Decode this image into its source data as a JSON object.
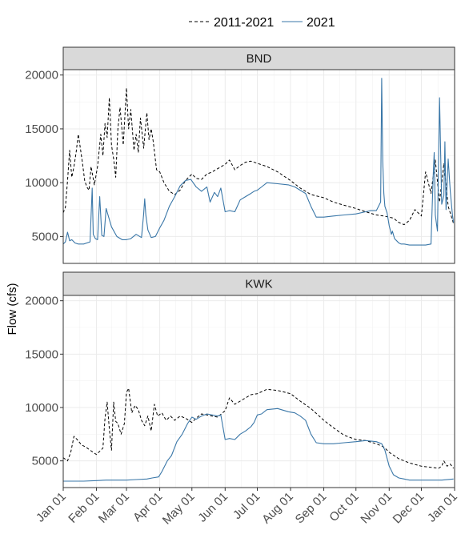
{
  "chart_data": {
    "type": "line",
    "ylabel": "Flow (cfs)",
    "xlabel": "",
    "xlim": [
      "2021-01-01",
      "2022-01-01"
    ],
    "ylim": [
      2500,
      20500
    ],
    "y_ticks": [
      5000,
      10000,
      15000,
      20000
    ],
    "x_tick_labels": [
      "Jan 01",
      "Feb 01",
      "Mar 01",
      "Apr 01",
      "May 01",
      "Jun 01",
      "Jul 01",
      "Aug 01",
      "Sep 01",
      "Oct 01",
      "Nov 01",
      "Dec 01",
      "Jan 01"
    ],
    "x_ticks": [
      "2021-01-01",
      "2021-02-01",
      "2021-03-01",
      "2021-04-01",
      "2021-05-01",
      "2021-06-01",
      "2021-07-01",
      "2021-08-01",
      "2021-09-01",
      "2021-10-01",
      "2021-11-01",
      "2021-12-01",
      "2022-01-01"
    ],
    "grid": true,
    "legend": {
      "position": "top",
      "entries": [
        {
          "label": "2011-2021",
          "style": "dashed",
          "color": "#000000"
        },
        {
          "label": "2021",
          "style": "solid",
          "color": "#3a77a8"
        }
      ]
    },
    "panels": [
      {
        "strip": "BND",
        "series": [
          {
            "name": "2011-2021",
            "color": "#000000",
            "style": "dashed",
            "x": [
              "2021-01-01",
              "2021-01-03",
              "2021-01-05",
              "2021-01-07",
              "2021-01-09",
              "2021-01-11",
              "2021-01-13",
              "2021-01-15",
              "2021-01-17",
              "2021-01-19",
              "2021-01-21",
              "2021-01-23",
              "2021-01-25",
              "2021-01-27",
              "2021-01-30",
              "2021-02-02",
              "2021-02-05",
              "2021-02-07",
              "2021-02-09",
              "2021-02-11",
              "2021-02-13",
              "2021-02-15",
              "2021-02-17",
              "2021-02-19",
              "2021-02-21",
              "2021-02-23",
              "2021-02-26",
              "2021-03-01",
              "2021-03-03",
              "2021-03-05",
              "2021-03-08",
              "2021-03-10",
              "2021-03-12",
              "2021-03-14",
              "2021-03-17",
              "2021-03-20",
              "2021-03-22",
              "2021-03-24",
              "2021-03-26",
              "2021-03-29",
              "2021-04-01",
              "2021-04-05",
              "2021-04-10",
              "2021-04-15",
              "2021-04-20",
              "2021-04-25",
              "2021-05-01",
              "2021-05-05",
              "2021-05-10",
              "2021-05-15",
              "2021-05-20",
              "2021-05-25",
              "2021-06-01",
              "2021-06-05",
              "2021-06-10",
              "2021-06-15",
              "2021-06-20",
              "2021-06-25",
              "2021-07-01",
              "2021-07-10",
              "2021-07-20",
              "2021-08-01",
              "2021-08-10",
              "2021-08-20",
              "2021-09-01",
              "2021-09-10",
              "2021-09-20",
              "2021-10-01",
              "2021-10-10",
              "2021-10-20",
              "2021-10-27",
              "2021-11-01",
              "2021-11-05",
              "2021-11-10",
              "2021-11-15",
              "2021-11-20",
              "2021-11-25",
              "2021-12-01",
              "2021-12-05",
              "2021-12-10",
              "2021-12-14",
              "2021-12-18",
              "2021-12-22",
              "2021-12-26",
              "2021-12-31"
            ],
            "y": [
              7200,
              7700,
              10200,
              13000,
              10500,
              11500,
              12800,
              14500,
              13200,
              11800,
              10200,
              9600,
              9300,
              11500,
              9800,
              11500,
              14500,
              12500,
              15500,
              14200,
              17900,
              13500,
              12200,
              10500,
              15000,
              17000,
              13500,
              18800,
              15000,
              16800,
              13000,
              14500,
              12800,
              16000,
              13200,
              16500,
              14000,
              15000,
              13800,
              11200,
              11000,
              10000,
              9200,
              8900,
              9300,
              10200,
              10800,
              10400,
              10300,
              10800,
              11000,
              11300,
              11700,
              12100,
              11200,
              11600,
              11900,
              12000,
              11800,
              11500,
              11000,
              10200,
              9500,
              8900,
              8600,
              8200,
              7900,
              7600,
              7300,
              7000,
              6900,
              6800,
              6700,
              6300,
              6100,
              6500,
              7500,
              6900,
              11000,
              9000,
              12100,
              8200,
              11800,
              7800,
              6200
            ]
          },
          {
            "name": "2021",
            "color": "#3a77a8",
            "style": "solid",
            "x": [
              "2021-01-01",
              "2021-01-03",
              "2021-01-05",
              "2021-01-07",
              "2021-01-09",
              "2021-01-12",
              "2021-01-15",
              "2021-01-20",
              "2021-01-26",
              "2021-01-28",
              "2021-01-29",
              "2021-01-31",
              "2021-02-02",
              "2021-02-04",
              "2021-02-06",
              "2021-02-08",
              "2021-02-10",
              "2021-02-15",
              "2021-02-20",
              "2021-02-25",
              "2021-03-01",
              "2021-03-05",
              "2021-03-10",
              "2021-03-15",
              "2021-03-17",
              "2021-03-18",
              "2021-03-19",
              "2021-03-21",
              "2021-03-24",
              "2021-03-28",
              "2021-04-01",
              "2021-04-05",
              "2021-04-10",
              "2021-04-15",
              "2021-04-20",
              "2021-04-25",
              "2021-04-30",
              "2021-05-05",
              "2021-05-10",
              "2021-05-15",
              "2021-05-18",
              "2021-05-22",
              "2021-05-25",
              "2021-05-28",
              "2021-06-01",
              "2021-06-05",
              "2021-06-10",
              "2021-06-15",
              "2021-06-20",
              "2021-06-25",
              "2021-06-28",
              "2021-07-01",
              "2021-07-05",
              "2021-07-10",
              "2021-07-20",
              "2021-07-30",
              "2021-08-05",
              "2021-08-10",
              "2021-08-15",
              "2021-08-20",
              "2021-08-25",
              "2021-09-01",
              "2021-09-10",
              "2021-09-20",
              "2021-10-01",
              "2021-10-10",
              "2021-10-15",
              "2021-10-20",
              "2021-10-24",
              "2021-10-25",
              "2021-10-26",
              "2021-10-27",
              "2021-10-28",
              "2021-10-30",
              "2021-11-01",
              "2021-11-03",
              "2021-11-04",
              "2021-11-06",
              "2021-11-08",
              "2021-11-10",
              "2021-11-12",
              "2021-11-15",
              "2021-11-20",
              "2021-11-25",
              "2021-12-01",
              "2021-12-05",
              "2021-12-10",
              "2021-12-12",
              "2021-12-13",
              "2021-12-14",
              "2021-12-16",
              "2021-12-18",
              "2021-12-20",
              "2021-12-22",
              "2021-12-23",
              "2021-12-24",
              "2021-12-26",
              "2021-12-28",
              "2021-12-30",
              "2021-12-31"
            ],
            "y": [
              4300,
              4500,
              5400,
              4600,
              4700,
              4400,
              4300,
              4300,
              4500,
              9500,
              5200,
              4800,
              4700,
              8700,
              5100,
              5000,
              7600,
              5900,
              5000,
              4700,
              4700,
              4800,
              5200,
              4900,
              7100,
              8500,
              7000,
              5600,
              4900,
              5000,
              5800,
              6500,
              7800,
              8700,
              9700,
              10200,
              10300,
              9600,
              9200,
              9600,
              8200,
              9100,
              8700,
              9500,
              7300,
              7400,
              7300,
              8400,
              8700,
              9000,
              9200,
              9300,
              9600,
              10000,
              9900,
              9800,
              9600,
              9300,
              9000,
              7800,
              6800,
              6800,
              6900,
              7000,
              7100,
              7300,
              7400,
              7400,
              8200,
              19700,
              12000,
              9000,
              7800,
              7200,
              6000,
              5200,
              5500,
              4800,
              4600,
              4400,
              4300,
              4300,
              4200,
              4200,
              4200,
              4200,
              4300,
              10500,
              12800,
              7000,
              5500,
              17900,
              8000,
              8800,
              13800,
              7500,
              12200,
              9200,
              7000,
              6300
            ]
          }
        ]
      },
      {
        "strip": "KWK",
        "series": [
          {
            "name": "2011-2021",
            "color": "#000000",
            "style": "dashed",
            "x": [
              "2021-01-01",
              "2021-01-05",
              "2021-01-08",
              "2021-01-11",
              "2021-01-14",
              "2021-01-18",
              "2021-01-22",
              "2021-01-26",
              "2021-01-29",
              "2021-02-01",
              "2021-02-04",
              "2021-02-07",
              "2021-02-09",
              "2021-02-11",
              "2021-02-13",
              "2021-02-15",
              "2021-02-17",
              "2021-02-19",
              "2021-02-21",
              "2021-02-24",
              "2021-02-27",
              "2021-03-01",
              "2021-03-03",
              "2021-03-06",
              "2021-03-09",
              "2021-03-12",
              "2021-03-15",
              "2021-03-18",
              "2021-03-21",
              "2021-03-24",
              "2021-03-27",
              "2021-03-30",
              "2021-04-03",
              "2021-04-07",
              "2021-04-11",
              "2021-04-15",
              "2021-04-20",
              "2021-04-25",
              "2021-05-01",
              "2021-05-05",
              "2021-05-10",
              "2021-05-15",
              "2021-05-20",
              "2021-05-25",
              "2021-06-01",
              "2021-06-05",
              "2021-06-10",
              "2021-06-15",
              "2021-06-20",
              "2021-06-25",
              "2021-07-01",
              "2021-07-10",
              "2021-07-20",
              "2021-08-01",
              "2021-08-10",
              "2021-08-20",
              "2021-09-01",
              "2021-09-10",
              "2021-09-20",
              "2021-10-01",
              "2021-10-10",
              "2021-10-20",
              "2021-10-27",
              "2021-11-01",
              "2021-11-10",
              "2021-11-20",
              "2021-12-01",
              "2021-12-10",
              "2021-12-17",
              "2021-12-20",
              "2021-12-22",
              "2021-12-25",
              "2021-12-28",
              "2021-12-31"
            ],
            "y": [
              5300,
              5000,
              5800,
              7300,
              7000,
              6500,
              6300,
              6000,
              5800,
              5600,
              5900,
              6200,
              9000,
              10500,
              8000,
              6000,
              10500,
              8700,
              8500,
              7500,
              8500,
              11400,
              11800,
              9500,
              10200,
              9800,
              8800,
              8300,
              9200,
              7800,
              10300,
              9200,
              9500,
              8800,
              9200,
              8800,
              9200,
              9000,
              8600,
              9000,
              9400,
              9300,
              9200,
              9100,
              9700,
              10900,
              10300,
              10600,
              10900,
              11200,
              11300,
              11700,
              11600,
              11300,
              10600,
              9900,
              8800,
              8100,
              7400,
              7000,
              6900,
              6600,
              6300,
              5800,
              5200,
              4800,
              4500,
              4400,
              4300,
              4500,
              5000,
              4500,
              4700,
              4300
            ]
          },
          {
            "name": "2021",
            "color": "#3a77a8",
            "style": "solid",
            "x": [
              "2021-01-01",
              "2021-01-10",
              "2021-01-20",
              "2021-02-01",
              "2021-02-10",
              "2021-02-20",
              "2021-03-01",
              "2021-03-10",
              "2021-03-20",
              "2021-03-25",
              "2021-03-31",
              "2021-04-03",
              "2021-04-08",
              "2021-04-12",
              "2021-04-17",
              "2021-04-22",
              "2021-04-27",
              "2021-05-01",
              "2021-05-05",
              "2021-05-10",
              "2021-05-15",
              "2021-05-20",
              "2021-05-25",
              "2021-05-28",
              "2021-06-01",
              "2021-06-05",
              "2021-06-10",
              "2021-06-15",
              "2021-06-20",
              "2021-06-25",
              "2021-06-28",
              "2021-07-01",
              "2021-07-05",
              "2021-07-10",
              "2021-07-20",
              "2021-07-30",
              "2021-08-05",
              "2021-08-10",
              "2021-08-15",
              "2021-08-20",
              "2021-08-25",
              "2021-09-01",
              "2021-09-10",
              "2021-09-20",
              "2021-10-01",
              "2021-10-10",
              "2021-10-20",
              "2021-10-25",
              "2021-10-28",
              "2021-11-01",
              "2021-11-05",
              "2021-11-10",
              "2021-11-15",
              "2021-11-20",
              "2021-11-25",
              "2021-12-01",
              "2021-12-10",
              "2021-12-20",
              "2021-12-31"
            ],
            "y": [
              3100,
              3100,
              3100,
              3150,
              3200,
              3200,
              3200,
              3250,
              3300,
              3400,
              3500,
              4000,
              5000,
              5500,
              6800,
              7500,
              8500,
              9100,
              8900,
              9200,
              9400,
              9300,
              9200,
              9300,
              7000,
              7100,
              7000,
              7500,
              7800,
              8200,
              8600,
              9300,
              9400,
              9800,
              9900,
              9600,
              9500,
              9200,
              8800,
              7500,
              6700,
              6600,
              6600,
              6700,
              6800,
              6900,
              6800,
              6600,
              6000,
              4500,
              3700,
              3400,
              3300,
              3200,
              3200,
              3200,
              3200,
              3200,
              3300
            ]
          }
        ]
      }
    ]
  }
}
